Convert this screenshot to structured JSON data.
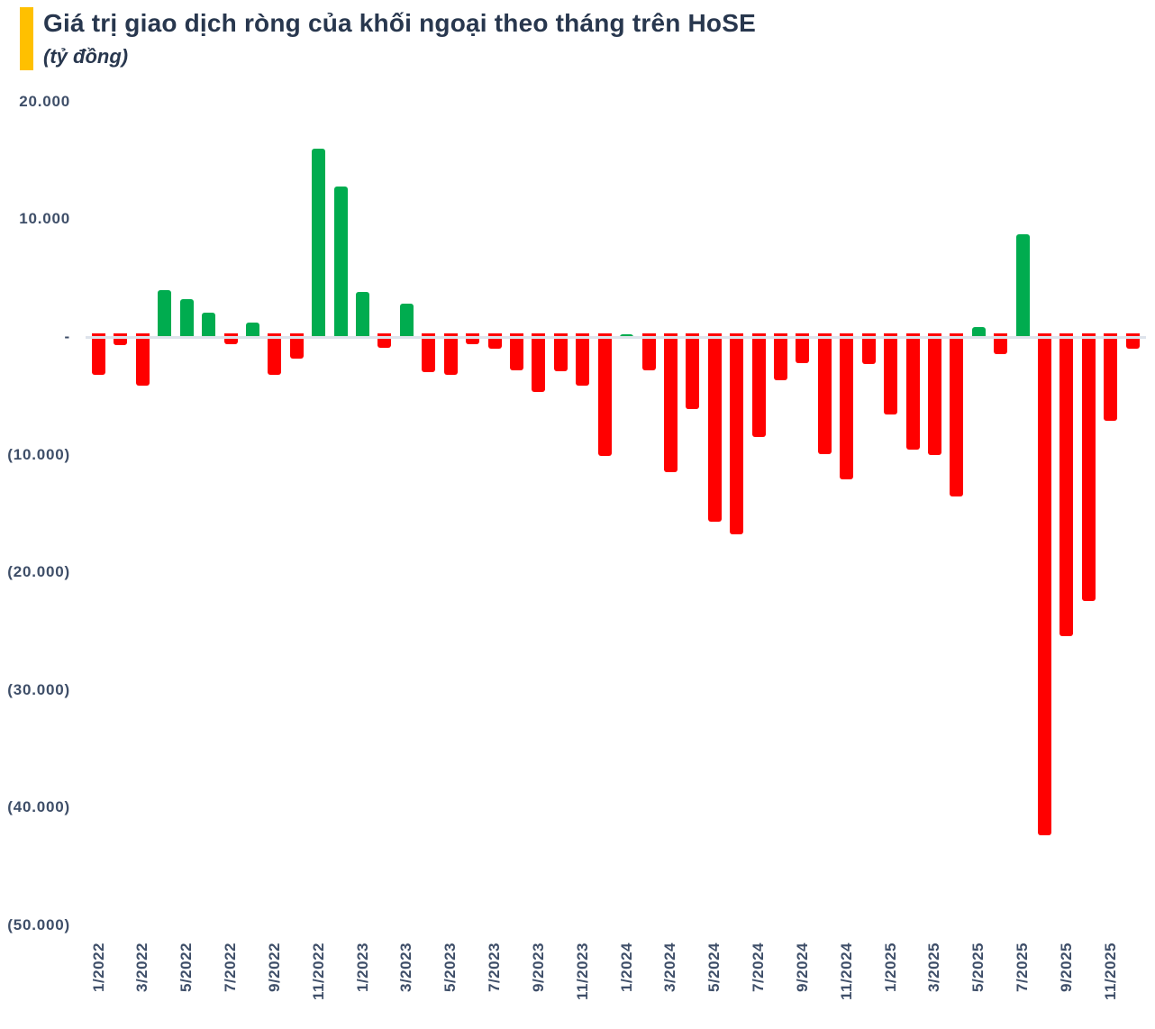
{
  "header": {
    "title": "Giá trị giao dịch ròng của khối ngoại theo tháng trên HoSE",
    "subtitle": "(tỷ đồng)"
  },
  "chart_data": {
    "type": "bar",
    "title": "Giá trị giao dịch ròng của khối ngoại theo tháng trên HoSE",
    "unit_label": "(tỷ đồng)",
    "ylabel": "tỷ đồng",
    "xlabel": "",
    "grid": false,
    "legend": false,
    "ylim": [
      -50000,
      20000
    ],
    "categories": [
      "1/2022",
      "2/2022",
      "3/2022",
      "4/2022",
      "5/2022",
      "6/2022",
      "7/2022",
      "8/2022",
      "9/2022",
      "10/2022",
      "11/2022",
      "12/2022",
      "1/2023",
      "2/2023",
      "3/2023",
      "4/2023",
      "5/2023",
      "6/2023",
      "7/2023",
      "8/2023",
      "9/2023",
      "10/2023",
      "11/2023",
      "12/2023",
      "1/2024",
      "2/2024",
      "3/2024",
      "4/2024",
      "5/2024",
      "6/2024",
      "7/2024",
      "8/2024",
      "9/2024",
      "10/2024",
      "11/2024",
      "12/2024",
      "1/2025",
      "2/2025",
      "3/2025",
      "4/2025",
      "5/2025",
      "6/2025",
      "7/2025",
      "8/2025",
      "9/2025",
      "10/2025",
      "11/2025",
      "12/2025"
    ],
    "values": [
      -3200,
      -700,
      -4100,
      4000,
      3200,
      2100,
      -600,
      1200,
      -3200,
      -1800,
      16000,
      12800,
      3850,
      -900,
      2800,
      -3000,
      -3250,
      -600,
      -1000,
      -2800,
      -4700,
      -2900,
      -4100,
      -10100,
      250,
      -2850,
      -11500,
      -6150,
      -15700,
      -16800,
      -8500,
      -3700,
      -2250,
      -9950,
      -12100,
      -2300,
      -6550,
      -9600,
      -10050,
      -13550,
      850,
      -1480,
      8700,
      -42350,
      -25400,
      -22400,
      -7150,
      -1000
    ],
    "x_tick_labels": [
      "1/2022",
      "3/2022",
      "5/2022",
      "7/2022",
      "9/2022",
      "11/2022",
      "1/2023",
      "3/2023",
      "5/2023",
      "7/2023",
      "9/2023",
      "11/2023",
      "1/2024",
      "3/2024",
      "5/2024",
      "7/2024",
      "9/2024",
      "11/2024",
      "1/2025",
      "3/2025",
      "5/2025",
      "7/2025",
      "9/2025",
      "11/2025"
    ],
    "x_tick_every": 2,
    "y_ticks": [
      {
        "label": "20.000",
        "value": 20000
      },
      {
        "label": "10.000",
        "value": 10000
      },
      {
        "label": "-",
        "value": 0
      },
      {
        "label": "(10.000)",
        "value": -10000
      },
      {
        "label": "(20.000)",
        "value": -20000
      },
      {
        "label": "(30.000)",
        "value": -30000
      },
      {
        "label": "(40.000)",
        "value": -40000
      },
      {
        "label": "(50.000)",
        "value": -50000
      }
    ],
    "colors": {
      "positive": "#00AC4F",
      "negative": "#FF0000",
      "zero_line": "#DEE3EB",
      "axis_text": "#3E4E68",
      "title_text": "#28374E",
      "accent": "#FFC000"
    }
  }
}
